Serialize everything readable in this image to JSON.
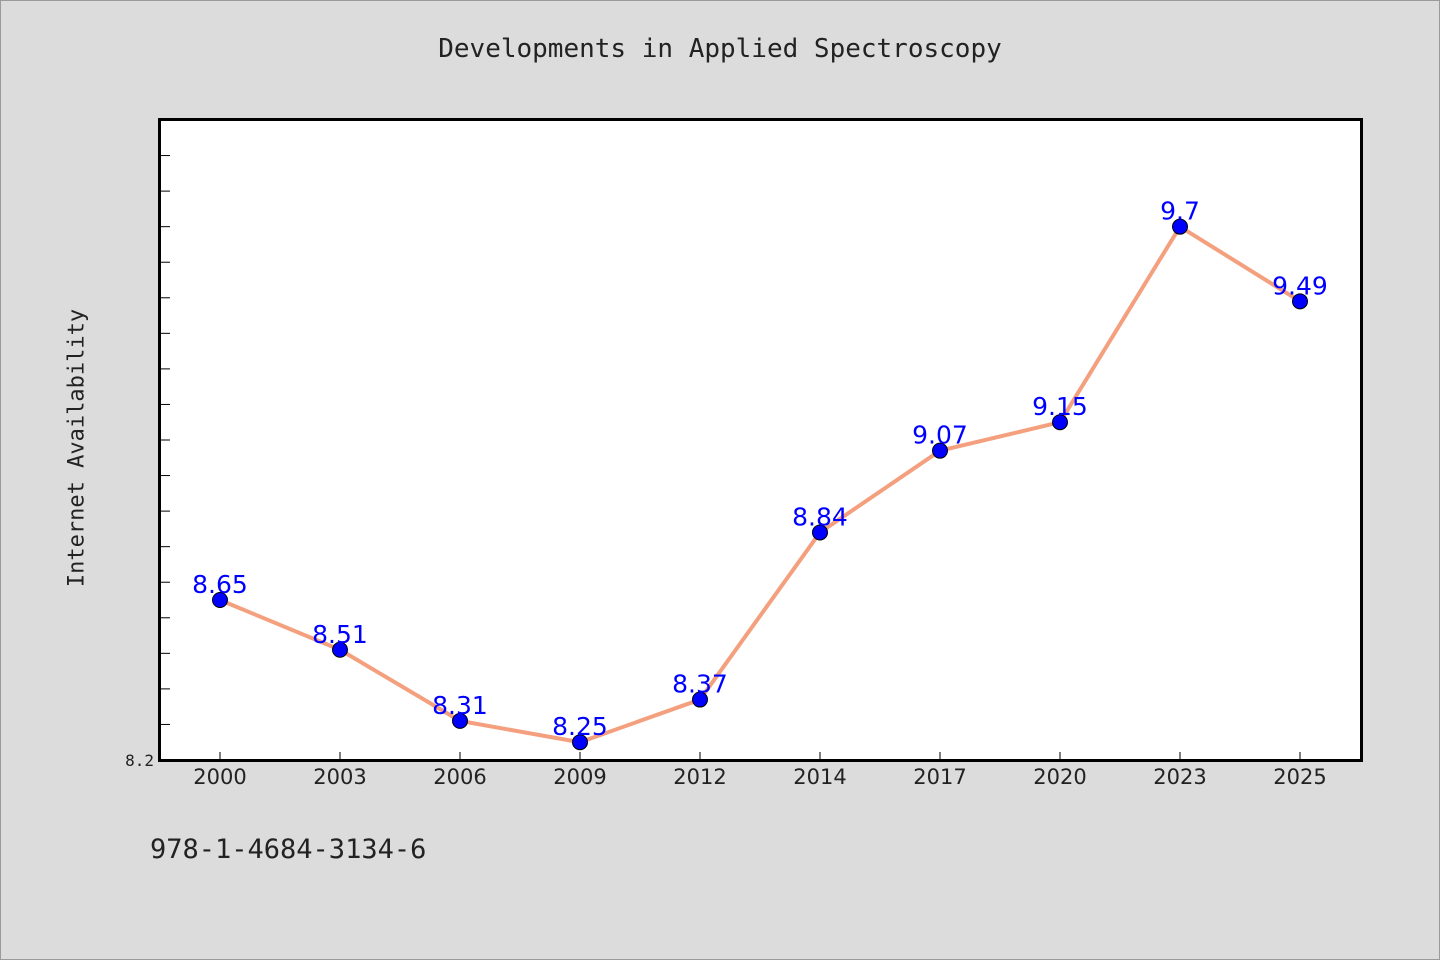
{
  "chart_data": {
    "type": "line",
    "title": "Developments in Applied Spectroscopy",
    "xlabel": "",
    "ylabel": "Internet Availability",
    "categories": [
      "2000",
      "2003",
      "2006",
      "2009",
      "2012",
      "2014",
      "2017",
      "2020",
      "2023",
      "2025"
    ],
    "series": [
      {
        "values": [
          8.65,
          8.51,
          8.31,
          8.25,
          8.37,
          8.84,
          9.07,
          9.15,
          9.7,
          9.49
        ]
      }
    ],
    "data_labels": [
      "8.65",
      "8.51",
      "8.31",
      "8.25",
      "8.37",
      "8.84",
      "9.07",
      "9.15",
      "9.7",
      "9.49"
    ],
    "ylim": [
      8.2,
      10.0
    ],
    "y_tick_label": "8.2",
    "grid": false,
    "line_color": "#f4a07e",
    "marker_color": "#0000ff",
    "label_color": "#0000ff"
  },
  "footer": {
    "isbn": "978-1-4684-3134-6"
  }
}
